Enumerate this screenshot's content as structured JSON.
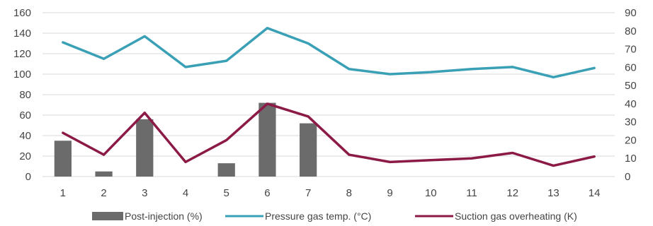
{
  "chart_data": {
    "type": "bar",
    "title": "",
    "xlabel": "",
    "ylabel": "",
    "ylabel_right": "",
    "categories": [
      "1",
      "2",
      "3",
      "4",
      "5",
      "6",
      "7",
      "8",
      "9",
      "10",
      "11",
      "12",
      "13",
      "14"
    ],
    "ylim_left": [
      0,
      160
    ],
    "ylim_right": [
      0,
      90
    ],
    "yticks_left": [
      "0",
      "20",
      "40",
      "60",
      "80",
      "100",
      "120",
      "140",
      "160"
    ],
    "yticks_right": [
      "0",
      "10",
      "20",
      "30",
      "40",
      "50",
      "60",
      "70",
      "80",
      "90"
    ],
    "grid": true,
    "legend_position": "bottom",
    "series": [
      {
        "name": "Post-injection (%)",
        "kind": "bar",
        "axis": "left",
        "color": "#6b6b6b",
        "values": [
          35,
          5,
          56,
          null,
          13,
          72,
          52,
          null,
          null,
          null,
          null,
          null,
          null,
          null
        ]
      },
      {
        "name": "Pressure gas temp. (°C)",
        "kind": "line",
        "axis": "left",
        "color": "#3aa0b5",
        "values": [
          131,
          115,
          137,
          107,
          113,
          145,
          130,
          105,
          100,
          102,
          105,
          107,
          97,
          106
        ]
      },
      {
        "name": "Suction gas overheating (K)",
        "kind": "line",
        "axis": "right",
        "color": "#8b1a46",
        "values": [
          24,
          12,
          35,
          8,
          20,
          40,
          33,
          12,
          8,
          9,
          10,
          13,
          6,
          11
        ]
      }
    ]
  }
}
